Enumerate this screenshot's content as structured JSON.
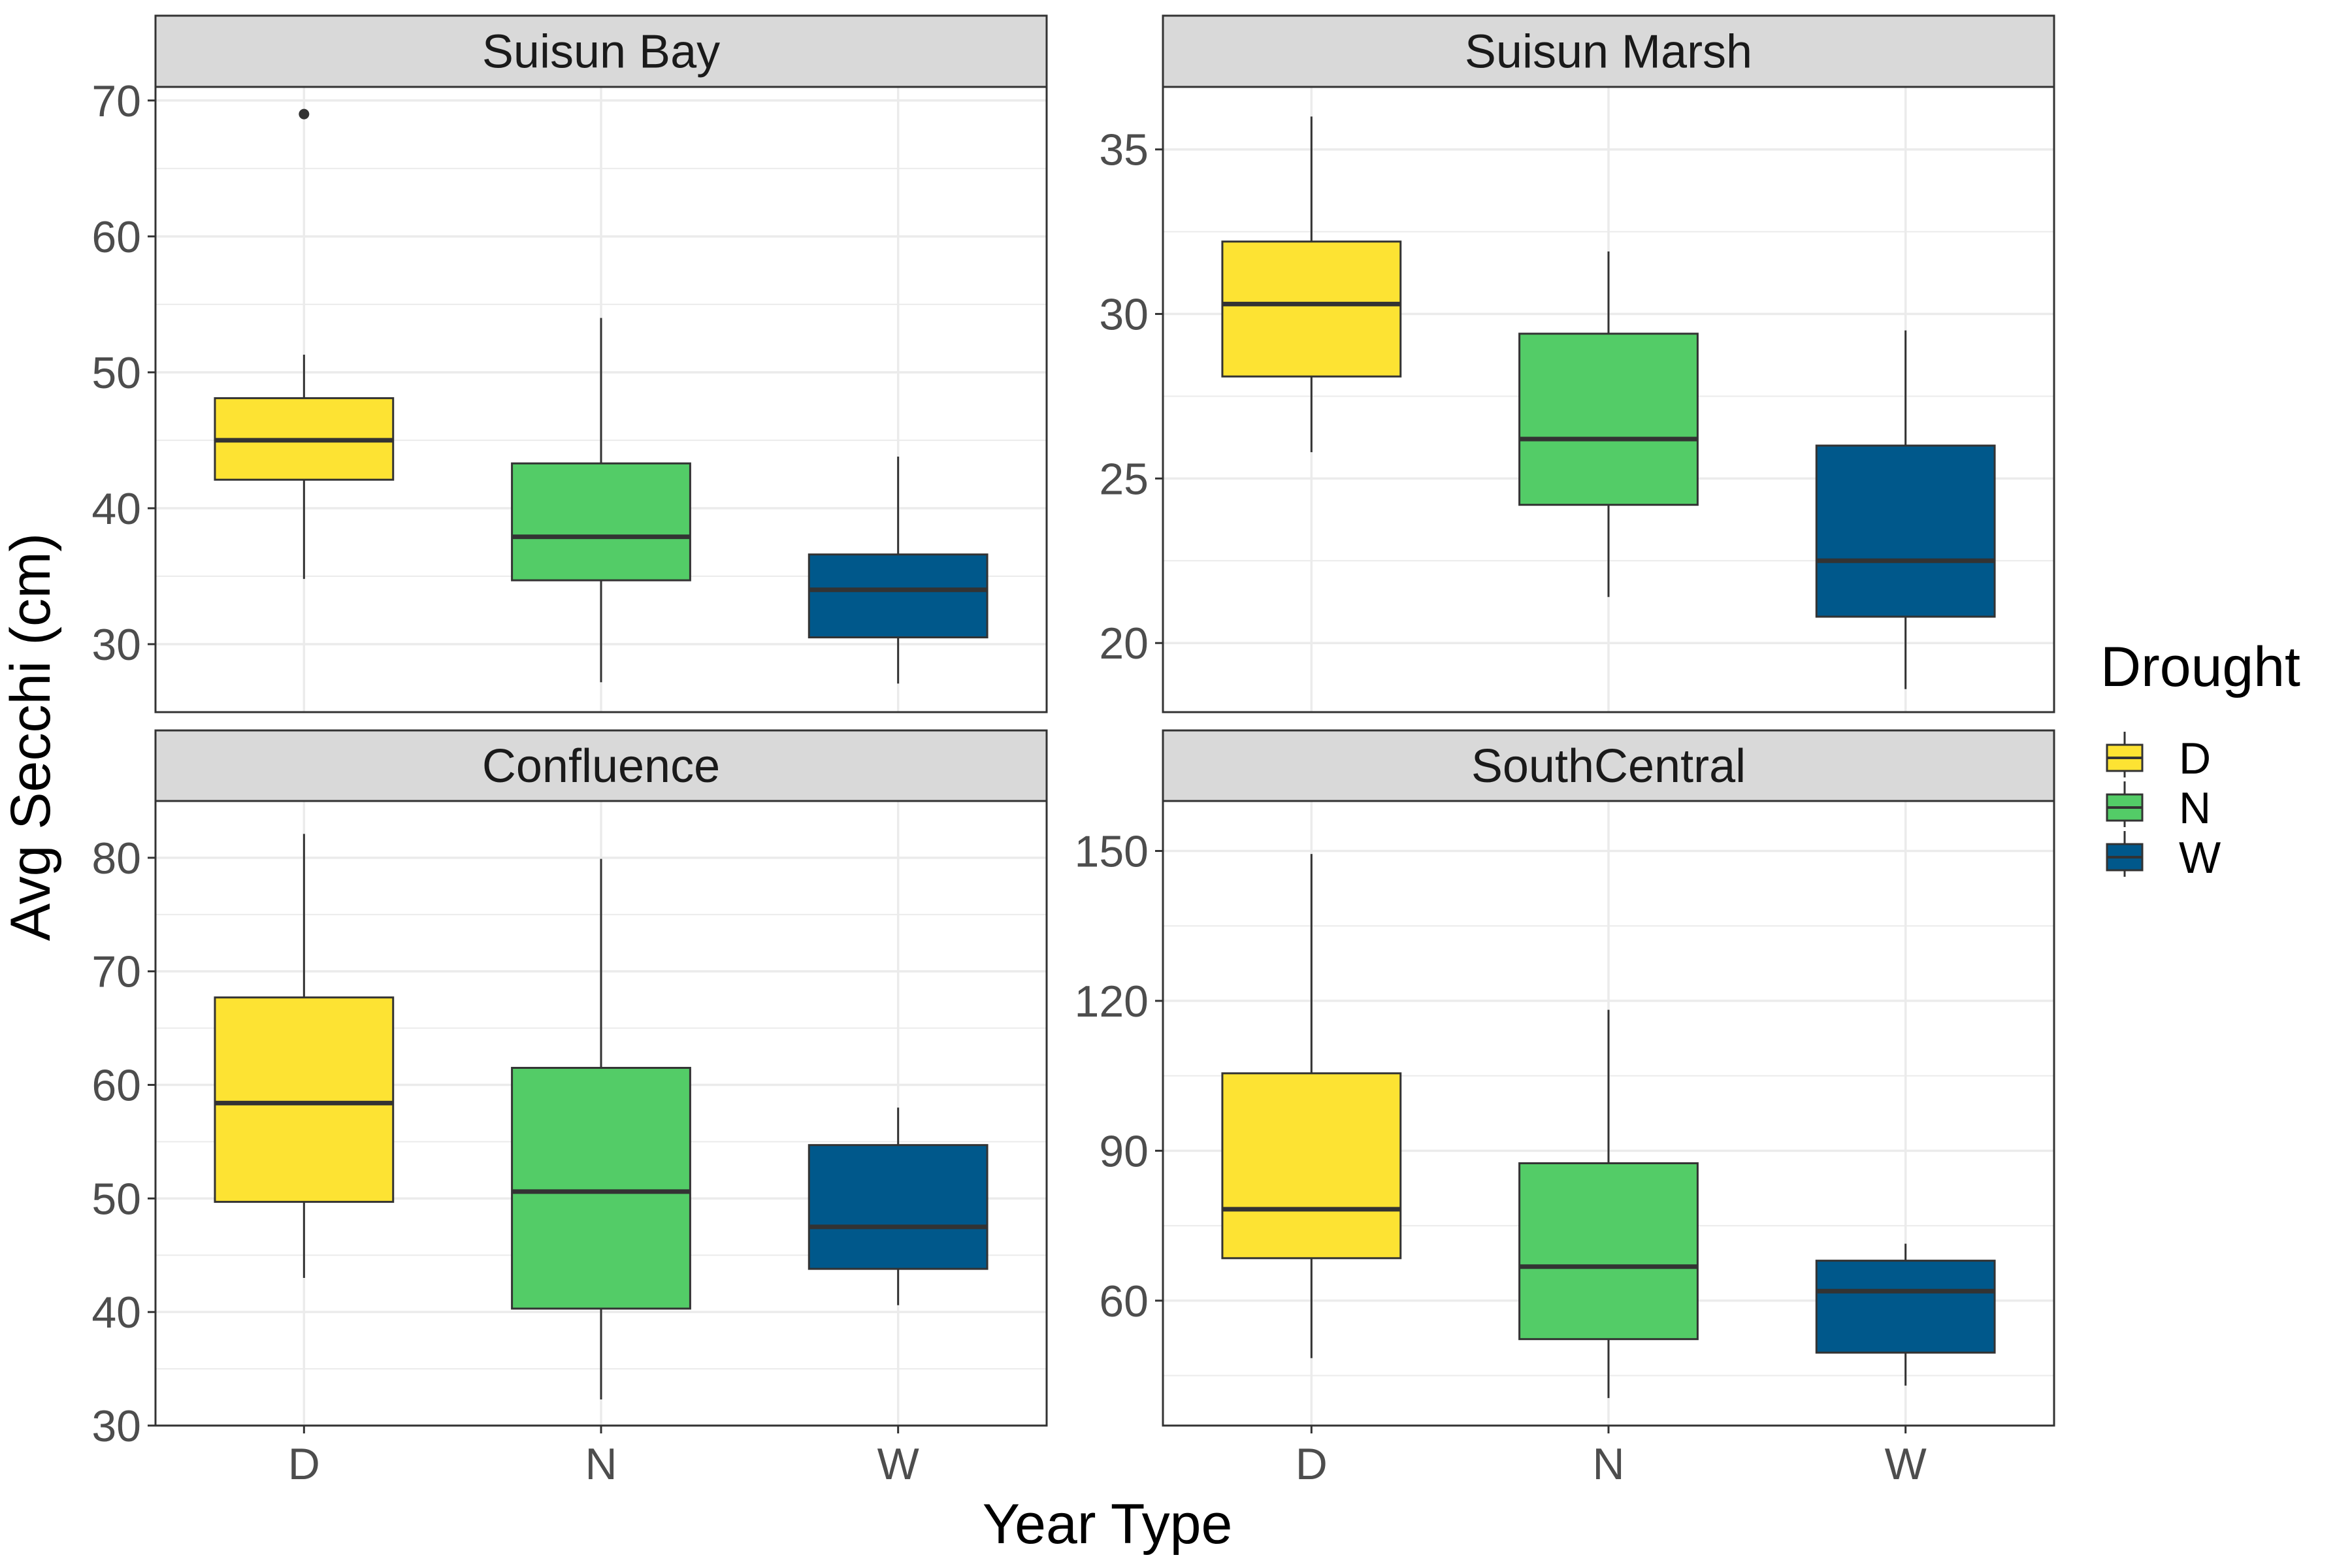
{
  "chart_data": {
    "type": "boxplot",
    "x_label": "Year Type",
    "y_label": "Avg Secchi (cm)",
    "categories": [
      "D",
      "N",
      "W"
    ],
    "legend": {
      "title": "Drought",
      "placement": "right",
      "items": [
        {
          "label": "D",
          "color": "#FDE333"
        },
        {
          "label": "N",
          "color": "#53CC67"
        },
        {
          "label": "W",
          "color": "#00588B"
        }
      ]
    },
    "panels": [
      {
        "title": "Suisun Bay",
        "ylim": [
          25,
          71
        ],
        "ticks": [
          30,
          40,
          50,
          60,
          70
        ],
        "tick_labels": [
          "30",
          "40",
          "50",
          "60",
          "70"
        ],
        "boxes": [
          {
            "category": "D",
            "low": 34.8,
            "q1": 42.1,
            "median": 45.0,
            "q3": 48.1,
            "high": 51.3,
            "outliers": [
              69.0
            ]
          },
          {
            "category": "N",
            "low": 27.2,
            "q1": 34.7,
            "median": 37.9,
            "q3": 43.3,
            "high": 54.0,
            "outliers": []
          },
          {
            "category": "W",
            "low": 27.1,
            "q1": 30.5,
            "median": 34.0,
            "q3": 36.6,
            "high": 43.8,
            "outliers": []
          }
        ]
      },
      {
        "title": "Suisun Marsh",
        "ylim": [
          17.9,
          36.9
        ],
        "ticks": [
          20,
          25,
          30,
          35
        ],
        "tick_labels": [
          "20",
          "25",
          "30",
          "35"
        ],
        "boxes": [
          {
            "category": "D",
            "low": 25.8,
            "q1": 28.1,
            "median": 30.3,
            "q3": 32.2,
            "high": 36.0,
            "outliers": []
          },
          {
            "category": "N",
            "low": 21.4,
            "q1": 24.2,
            "median": 26.2,
            "q3": 29.4,
            "high": 31.9,
            "outliers": []
          },
          {
            "category": "W",
            "low": 18.6,
            "q1": 20.8,
            "median": 22.5,
            "q3": 26.0,
            "high": 29.5,
            "outliers": []
          }
        ]
      },
      {
        "title": "Confluence",
        "ylim": [
          30,
          85
        ],
        "ticks": [
          30,
          40,
          50,
          60,
          70,
          80
        ],
        "tick_labels": [
          "30",
          "40",
          "50",
          "60",
          "70",
          "80"
        ],
        "boxes": [
          {
            "category": "D",
            "low": 43.0,
            "q1": 49.7,
            "median": 58.4,
            "q3": 67.7,
            "high": 82.1,
            "outliers": []
          },
          {
            "category": "N",
            "low": 32.3,
            "q1": 40.3,
            "median": 50.6,
            "q3": 61.5,
            "high": 79.9,
            "outliers": []
          },
          {
            "category": "W",
            "low": 40.6,
            "q1": 43.8,
            "median": 47.5,
            "q3": 54.7,
            "high": 58.0,
            "outliers": []
          }
        ]
      },
      {
        "title": "SouthCentral",
        "ylim": [
          35,
          160
        ],
        "ticks": [
          60,
          90,
          120,
          150
        ],
        "tick_labels": [
          "60",
          "90",
          "120",
          "150"
        ],
        "boxes": [
          {
            "category": "D",
            "low": 48.5,
            "q1": 68.5,
            "median": 78.3,
            "q3": 105.5,
            "high": 149.4,
            "outliers": []
          },
          {
            "category": "N",
            "low": 40.5,
            "q1": 52.3,
            "median": 66.8,
            "q3": 87.5,
            "high": 118.2,
            "outliers": []
          },
          {
            "category": "W",
            "low": 43.0,
            "q1": 49.6,
            "median": 61.9,
            "q3": 68.0,
            "high": 71.4,
            "outliers": []
          }
        ]
      }
    ]
  }
}
